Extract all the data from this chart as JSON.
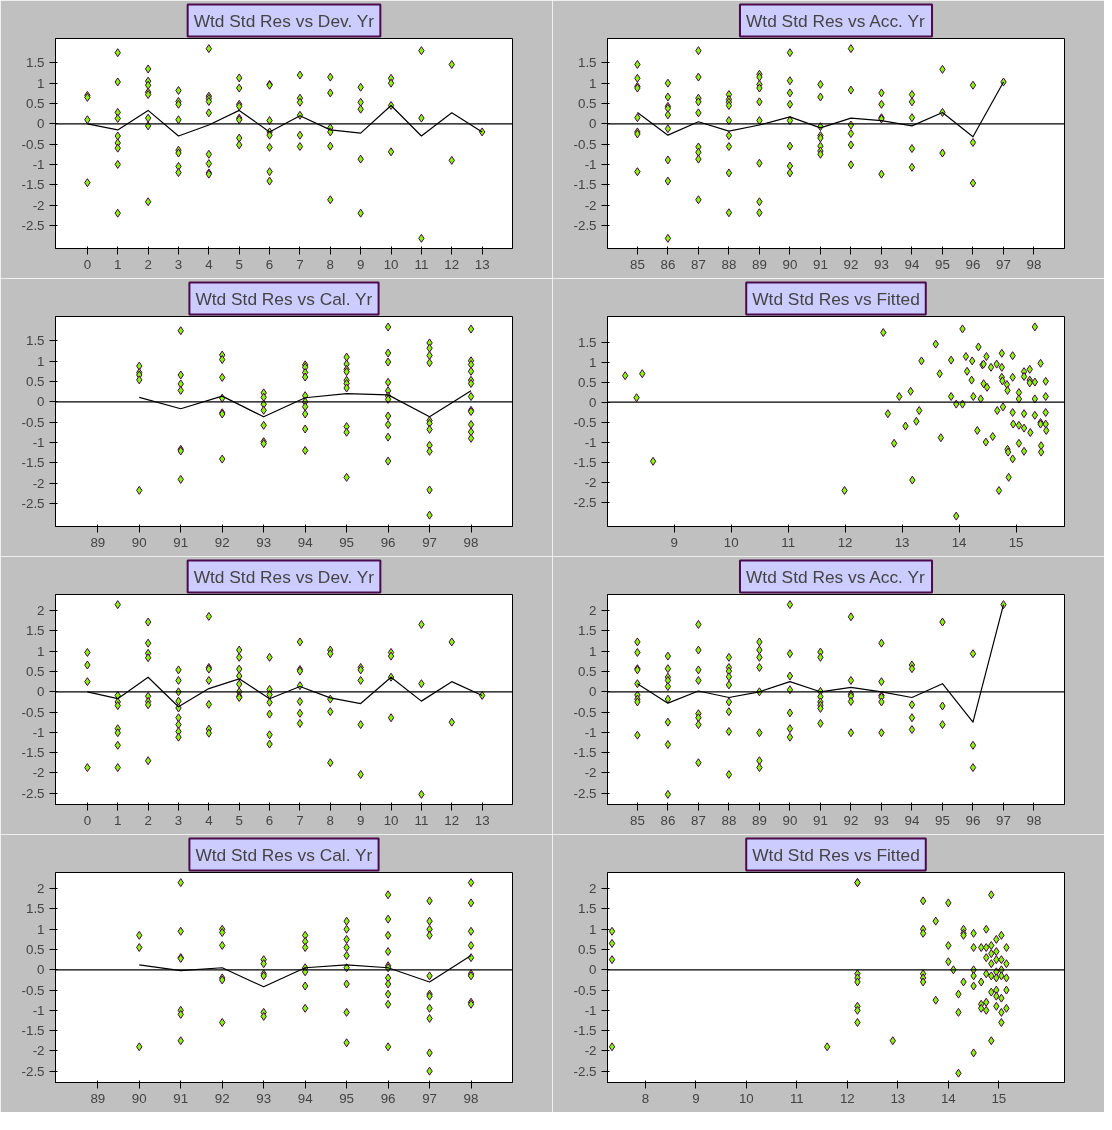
{
  "chart_data": [
    {
      "type": "scatter",
      "title": "Wtd Std Res vs Dev. Yr",
      "xlim": [
        -1.05,
        14
      ],
      "ylim": [
        -3.07,
        2.1
      ],
      "xticks": [
        0,
        1,
        2,
        3,
        4,
        5,
        6,
        7,
        8,
        9,
        10,
        11,
        12,
        13
      ],
      "yticks": [
        -2.5,
        -2,
        -1.5,
        -1,
        -0.5,
        0,
        0.5,
        1,
        1.5
      ],
      "grid": false,
      "marker": "diamond",
      "ref_lines": [
        {
          "axis": "y",
          "value": 0,
          "color": "#000000"
        }
      ],
      "series": [
        {
          "color": "#80ff00",
          "x": [
            0,
            0,
            0,
            0,
            1,
            1,
            1,
            1,
            1,
            1,
            1,
            1,
            1,
            2,
            2,
            2,
            2,
            2,
            2,
            2,
            2,
            3,
            3,
            3,
            3,
            3,
            3,
            3,
            3,
            4,
            4,
            4,
            4,
            4,
            4,
            4,
            4,
            4,
            5,
            5,
            5,
            5,
            5,
            5,
            5,
            5,
            6,
            6,
            6,
            6,
            6,
            6,
            6,
            6,
            7,
            7,
            7,
            7,
            7,
            7,
            8,
            8,
            8,
            8,
            8,
            8,
            9,
            9,
            9,
            9,
            9,
            10,
            10,
            10,
            10,
            11,
            11,
            11,
            12,
            12,
            13
          ],
          "values": [
            0.7,
            0.65,
            0.1,
            -1.45,
            1.75,
            1.03,
            0.28,
            0.13,
            -0.3,
            -0.47,
            -0.6,
            -1.0,
            -2.2,
            1.35,
            1.05,
            0.95,
            0.78,
            0.72,
            0.14,
            -0.05,
            -1.92,
            0.82,
            0.55,
            0.48,
            0.1,
            -0.65,
            -0.72,
            -1.05,
            -1.2,
            1.85,
            0.68,
            0.62,
            0.55,
            0.27,
            -0.75,
            -0.98,
            -1.21,
            -1.24,
            1.13,
            0.88,
            0.48,
            0.43,
            0.14,
            0.1,
            -0.35,
            -0.52,
            0.97,
            0.95,
            0.08,
            -0.2,
            -0.28,
            -0.58,
            -1.18,
            -1.41,
            1.2,
            0.63,
            0.53,
            0.21,
            -0.28,
            -0.56,
            1.15,
            0.76,
            -0.1,
            -0.2,
            -0.55,
            -1.87,
            0.9,
            0.53,
            0.36,
            -0.87,
            -2.2,
            1.12,
            1.0,
            0.45,
            -0.69,
            1.8,
            0.14,
            -2.82,
            1.46,
            -0.9,
            -0.2
          ]
        },
        {
          "type": "line",
          "marker": "none",
          "color": "#000000",
          "line_style": "solid",
          "x": [
            0,
            1,
            2,
            3,
            4,
            5,
            6,
            7,
            8,
            9,
            10,
            11,
            12,
            13
          ],
          "values": [
            0,
            -0.15,
            0.33,
            -0.3,
            -0.03,
            0.33,
            -0.2,
            0.2,
            -0.15,
            -0.23,
            0.45,
            -0.3,
            0.27,
            -0.2
          ]
        }
      ]
    },
    {
      "type": "scatter",
      "title": "Wtd Std Res vs Acc. Yr",
      "xlim": [
        84.02,
        99
      ],
      "ylim": [
        -3.07,
        2.1
      ],
      "xticks": [
        85,
        86,
        87,
        88,
        89,
        90,
        91,
        92,
        93,
        94,
        95,
        96,
        97,
        98
      ],
      "yticks": [
        -2.5,
        -2,
        -1.5,
        -1,
        -0.5,
        0,
        0.5,
        1,
        1.5
      ],
      "grid": false,
      "marker": "diamond",
      "ref_lines": [
        {
          "axis": "y",
          "value": 0,
          "color": "#000000"
        }
      ],
      "series": [
        {
          "color": "#80ff00",
          "x": [
            85,
            85,
            85,
            85,
            85,
            85,
            85,
            85,
            86,
            86,
            86,
            86,
            86,
            86,
            86,
            86,
            86,
            87,
            87,
            87,
            87,
            87,
            87,
            87,
            87,
            87,
            88,
            88,
            88,
            88,
            88,
            88,
            88,
            88,
            88,
            89,
            89,
            89,
            89,
            89,
            89,
            89,
            89,
            89,
            90,
            90,
            90,
            90,
            90,
            90,
            90,
            90,
            91,
            91,
            91,
            91,
            91,
            91,
            91,
            91,
            92,
            92,
            92,
            92,
            92,
            92,
            93,
            93,
            93,
            93,
            93,
            94,
            94,
            94,
            94,
            94,
            95,
            95,
            95,
            96,
            96,
            96,
            97
          ],
          "values": [
            1.46,
            1.12,
            0.92,
            0.88,
            0.15,
            -0.2,
            -0.25,
            -1.18,
            1.0,
            0.66,
            0.43,
            0.38,
            0.22,
            -0.12,
            -0.89,
            -1.41,
            -2.82,
            1.8,
            1.15,
            0.63,
            0.54,
            0.27,
            -0.57,
            -0.7,
            -0.87,
            -1.87,
            0.72,
            0.6,
            0.53,
            0.45,
            0.08,
            -0.29,
            -0.56,
            -1.21,
            -2.19,
            1.22,
            1.15,
            0.97,
            0.88,
            0.54,
            0.08,
            -0.97,
            -1.92,
            -2.19,
            1.75,
            1.06,
            0.76,
            0.48,
            0.08,
            -0.55,
            -1.04,
            -1.21,
            0.97,
            0.66,
            -0.07,
            -0.29,
            -0.35,
            -0.55,
            -0.67,
            -0.75,
            1.85,
            0.83,
            -0.03,
            -0.24,
            -0.52,
            -1.01,
            0.76,
            0.48,
            0.15,
            0.12,
            -1.24,
            0.72,
            0.54,
            0.15,
            -0.61,
            -1.07,
            1.34,
            0.28,
            -0.72,
            0.95,
            -0.46,
            -1.46,
            1.03
          ]
        },
        {
          "type": "line",
          "marker": "none",
          "color": "#000000",
          "line_style": "solid",
          "x": [
            85,
            86,
            87,
            88,
            89,
            90,
            91,
            92,
            93,
            94,
            95,
            96,
            97
          ],
          "values": [
            0.28,
            -0.28,
            0.05,
            -0.18,
            -0.03,
            0.17,
            -0.1,
            0.14,
            0.08,
            -0.05,
            0.28,
            -0.32,
            1.03
          ]
        }
      ]
    },
    {
      "type": "scatter",
      "title": "Wtd Std Res vs Cal. Yr",
      "xlim": [
        87.98,
        99
      ],
      "ylim": [
        -3.07,
        2.1
      ],
      "xticks": [
        89,
        90,
        91,
        92,
        93,
        94,
        95,
        96,
        97,
        98
      ],
      "yticks": [
        -2.5,
        -2,
        -1.5,
        -1,
        -0.5,
        0,
        0.5,
        1,
        1.5
      ],
      "grid": false,
      "marker": "diamond",
      "ref_lines": [
        {
          "axis": "y",
          "value": 0,
          "color": "#000000"
        }
      ],
      "series": [
        {
          "color": "#80ff00",
          "x": [
            90,
            90,
            90,
            90,
            90,
            91,
            91,
            91,
            91,
            91,
            91,
            91,
            92,
            92,
            92,
            92,
            92,
            92,
            92,
            93,
            93,
            93,
            93,
            93,
            93,
            93,
            94,
            94,
            94,
            94,
            94,
            94,
            94,
            94,
            94,
            94,
            95,
            95,
            95,
            95,
            95,
            95,
            95,
            95,
            95,
            95,
            96,
            96,
            96,
            96,
            96,
            96,
            96,
            96,
            96,
            96,
            96,
            97,
            97,
            97,
            97,
            97,
            97,
            97,
            97,
            97,
            97,
            97,
            98,
            98,
            98,
            98,
            98,
            98,
            98,
            98,
            98,
            98,
            98,
            98
          ],
          "values": [
            0.88,
            0.72,
            0.66,
            0.54,
            -2.18,
            1.75,
            0.66,
            0.44,
            0.28,
            -1.17,
            -1.21,
            -1.91,
            1.15,
            1.04,
            0.6,
            0.09,
            -0.27,
            -0.3,
            -1.41,
            0.22,
            0.11,
            -0.06,
            -0.21,
            -0.58,
            -0.98,
            -1.03,
            0.91,
            0.85,
            0.72,
            0.61,
            0.15,
            0,
            -0.12,
            -0.3,
            -0.67,
            -1.2,
            1.1,
            0.93,
            0.8,
            0.74,
            0.53,
            0.45,
            0.34,
            -0.61,
            -0.75,
            -1.86,
            1.84,
            1.2,
            0.98,
            0.48,
            0.27,
            0.14,
            0.06,
            -0.35,
            -0.56,
            -0.87,
            -1.46,
            1.45,
            1.32,
            1.14,
            0.96,
            -0.46,
            -0.53,
            -0.68,
            -1.07,
            -1.22,
            -2.17,
            -2.79,
            1.79,
            1.01,
            0.92,
            0.75,
            0.53,
            0.45,
            0.13,
            -0.21,
            -0.24,
            -0.56,
            -0.74,
            -0.9
          ]
        },
        {
          "type": "line",
          "marker": "none",
          "color": "#000000",
          "line_style": "solid",
          "x": [
            90,
            91,
            92,
            93,
            94,
            95,
            96,
            97,
            98
          ],
          "values": [
            0.11,
            -0.17,
            0.14,
            -0.37,
            0.1,
            0.2,
            0.17,
            -0.37,
            0.27
          ]
        }
      ]
    },
    {
      "type": "scatter",
      "title": "Wtd Std Res vs Fitted",
      "xlim": [
        7.83,
        15.85
      ],
      "ylim": [
        -3.11,
        2.14
      ],
      "xticks": [
        9,
        10,
        11,
        12,
        13,
        14,
        15
      ],
      "yticks": [
        -2.5,
        -2,
        -1.5,
        -1,
        -0.5,
        0,
        0.5,
        1,
        1.5
      ],
      "grid": false,
      "marker": "diamond",
      "ref_lines": [
        {
          "axis": "y",
          "value": 0,
          "color": "#000000"
        }
      ],
      "series": [
        {
          "color": "#80ff00",
          "x": [
            8.14,
            8.34,
            8.44,
            8.63,
            11.99,
            12.67,
            12.75,
            12.86,
            12.95,
            13.06,
            13.15,
            13.18,
            13.25,
            13.3,
            13.34,
            13.59,
            13.66,
            13.68,
            13.86,
            13.86,
            13.95,
            13.95,
            14.06,
            14.06,
            14.12,
            14.14,
            14.22,
            14.23,
            14.25,
            14.32,
            14.34,
            14.38,
            14.41,
            14.43,
            14.43,
            14.47,
            14.49,
            14.48,
            14.56,
            14.59,
            14.66,
            14.67,
            14.7,
            14.75,
            14.75,
            14.75,
            14.76,
            14.77,
            14.84,
            14.85,
            14.85,
            14.86,
            14.87,
            14.94,
            14.94,
            14.94,
            14.95,
            14.94,
            15.05,
            15.05,
            15.05,
            15.05,
            15.14,
            15.14,
            15.14,
            15.14,
            15.14,
            15.24,
            15.24,
            15.24,
            15.25,
            15.33,
            15.33,
            15.33,
            15.33,
            15.43,
            15.43,
            15.43,
            15.44,
            15.44,
            15.52,
            15.52,
            15.52,
            15.52,
            15.53
          ],
          "values": [
            0.66,
            0.11,
            0.71,
            -1.48,
            -2.21,
            1.74,
            -0.29,
            -1.03,
            0.14,
            -0.6,
            0.27,
            -1.95,
            -0.48,
            -0.21,
            1.03,
            1.45,
            0.71,
            -0.89,
            1.05,
            0.14,
            -0.05,
            -2.85,
            1.83,
            -0.05,
            1.14,
            0.77,
            0.55,
            1.03,
            0.14,
            -0.71,
            1.38,
            0.08,
            0.93,
            0.95,
            0.46,
            -1.0,
            0.37,
            1.14,
            0.87,
            -0.86,
            0.95,
            -0.21,
            -2.21,
            1.22,
            0.87,
            0.62,
            0.53,
            -0.12,
            0.44,
            0.29,
            -1.18,
            -1.25,
            -1.88,
            1.16,
            0.62,
            -0.26,
            -0.55,
            -1.42,
            0.24,
            0.08,
            -0.58,
            -1.03,
            0.76,
            0.64,
            -0.29,
            -0.65,
            -1.23,
            0.82,
            0.55,
            0.48,
            -0.76,
            0.5,
            1.88,
            0.08,
            -0.33,
            0.97,
            -0.51,
            -0.55,
            -1.09,
            -1.25,
            0.52,
            0.14,
            -0.26,
            -0.55,
            -0.71
          ]
        }
      ]
    },
    {
      "type": "scatter",
      "title": "Wtd Std Res vs Dev. Yr",
      "xlim": [
        -1.05,
        14
      ],
      "ylim": [
        -2.78,
        2.4
      ],
      "xticks": [
        0,
        1,
        2,
        3,
        4,
        5,
        6,
        7,
        8,
        9,
        10,
        11,
        12,
        13
      ],
      "yticks": [
        -2.5,
        -2,
        -1.5,
        -1,
        -0.5,
        0,
        0.5,
        1,
        1.5,
        2
      ],
      "grid": false,
      "marker": "diamond",
      "ref_lines": [
        {
          "axis": "y",
          "value": 0,
          "color": "#000000"
        }
      ],
      "series": [
        {
          "color": "#80ff00",
          "x": [
            0,
            0,
            0,
            0,
            1,
            1,
            1,
            1,
            1,
            1,
            1,
            1,
            2,
            2,
            2,
            2,
            2,
            2,
            2,
            2,
            3,
            3,
            3,
            3,
            3,
            3,
            3,
            3,
            3,
            4,
            4,
            4,
            4,
            4,
            4,
            4,
            5,
            5,
            5,
            5,
            5,
            5,
            5,
            5,
            6,
            6,
            6,
            6,
            6,
            6,
            6,
            7,
            7,
            7,
            7,
            7,
            7,
            7,
            8,
            8,
            8,
            8,
            8,
            9,
            9,
            9,
            9,
            9,
            10,
            10,
            10,
            10,
            11,
            11,
            11,
            12,
            12,
            13
          ],
          "values": [
            0.97,
            0.66,
            0.25,
            -1.87,
            2.15,
            -0.09,
            -0.25,
            -0.34,
            -0.91,
            -1.01,
            -1.32,
            -1.87,
            1.72,
            1.2,
            0.95,
            0.84,
            -0.11,
            -0.24,
            -0.32,
            -1.7,
            0.54,
            0.28,
            0,
            -0.23,
            -0.4,
            -0.64,
            -0.81,
            -0.98,
            -1.12,
            1.86,
            0.6,
            0.56,
            0.28,
            -0.31,
            -0.92,
            -1.02,
            1.03,
            0.85,
            0.56,
            0.39,
            0.19,
            0,
            -0.11,
            -0.14,
            0.85,
            0.06,
            -0.07,
            -0.26,
            -0.55,
            -1.06,
            -1.29,
            1.23,
            0.55,
            0.51,
            0.15,
            -0.24,
            -0.53,
            -0.78,
            1.03,
            0.94,
            -0.18,
            -0.49,
            -1.75,
            0.6,
            0.54,
            0.28,
            -0.81,
            -2.04,
            0.97,
            0.88,
            0.36,
            -0.64,
            1.66,
            0.2,
            -2.53,
            1.23,
            -0.75,
            -0.09
          ]
        },
        {
          "type": "line",
          "marker": "none",
          "color": "#000000",
          "line_style": "solid",
          "x": [
            0,
            1,
            2,
            3,
            4,
            5,
            6,
            7,
            8,
            9,
            10,
            11,
            12,
            13
          ],
          "values": [
            0,
            -0.17,
            0.36,
            -0.37,
            0.08,
            0.32,
            -0.17,
            0.13,
            -0.15,
            -0.29,
            0.36,
            -0.23,
            0.25,
            -0.09
          ]
        }
      ]
    },
    {
      "type": "scatter",
      "title": "Wtd Std Res vs Acc. Yr",
      "xlim": [
        84.02,
        99
      ],
      "ylim": [
        -2.78,
        2.4
      ],
      "xticks": [
        85,
        86,
        87,
        88,
        89,
        90,
        91,
        92,
        93,
        94,
        95,
        96,
        97,
        98
      ],
      "yticks": [
        -2.5,
        -2,
        -1.5,
        -1,
        -0.5,
        0,
        0.5,
        1,
        1.5,
        2
      ],
      "grid": false,
      "marker": "diamond",
      "ref_lines": [
        {
          "axis": "y",
          "value": 0,
          "color": "#000000"
        }
      ],
      "series": [
        {
          "color": "#80ff00",
          "x": [
            85,
            85,
            85,
            85,
            85,
            85,
            85,
            85,
            85,
            86,
            86,
            86,
            86,
            86,
            86,
            86,
            86,
            86,
            87,
            87,
            87,
            87,
            87,
            87,
            87,
            87,
            88,
            88,
            88,
            88,
            88,
            88,
            88,
            88,
            88,
            89,
            89,
            89,
            89,
            89,
            89,
            89,
            89,
            90,
            90,
            90,
            90,
            90,
            90,
            90,
            91,
            91,
            91,
            91,
            91,
            91,
            91,
            91,
            92,
            92,
            92,
            92,
            92,
            92,
            93,
            93,
            93,
            93,
            93,
            93,
            94,
            94,
            94,
            94,
            94,
            95,
            95,
            95,
            96,
            96,
            96,
            97
          ],
          "values": [
            1.23,
            0.97,
            0.57,
            0.54,
            0.2,
            -0.08,
            -0.18,
            -0.25,
            -1.07,
            0.88,
            0.57,
            0.36,
            0.28,
            0.13,
            -0.18,
            -0.75,
            -1.3,
            -2.53,
            1.66,
            1.03,
            0.54,
            0.28,
            -0.54,
            -0.64,
            -0.81,
            -1.75,
            0.85,
            0.6,
            0.51,
            0.37,
            0.17,
            -0.25,
            -0.49,
            -0.98,
            -2.04,
            1.23,
            1.03,
            0.85,
            0.6,
            0,
            -1.01,
            -1.7,
            -1.87,
            2.15,
            0.94,
            0.39,
            0.05,
            -0.52,
            -0.91,
            -1.12,
            0.98,
            0.85,
            0.01,
            -0.12,
            -0.25,
            -0.33,
            -0.41,
            -0.78,
            1.85,
            0.28,
            -0.06,
            -0.11,
            -0.24,
            -1.01,
            1.2,
            0.25,
            -0.09,
            -0.13,
            -0.25,
            -1.01,
            0.66,
            0.57,
            -0.32,
            -0.64,
            -0.93,
            1.72,
            -0.35,
            -0.81,
            0.94,
            -1.32,
            -1.87,
            2.15
          ]
        },
        {
          "type": "line",
          "marker": "none",
          "color": "#000000",
          "line_style": "solid",
          "x": [
            85,
            86,
            87,
            88,
            89,
            90,
            91,
            92,
            93,
            94,
            95,
            96,
            97
          ],
          "values": [
            0.2,
            -0.28,
            0.02,
            -0.14,
            0,
            0.25,
            0,
            0.11,
            0,
            -0.14,
            0.2,
            -0.75,
            2.15
          ]
        }
      ]
    },
    {
      "type": "scatter",
      "title": "Wtd Std Res vs Cal. Yr",
      "xlim": [
        87.98,
        99
      ],
      "ylim": [
        -2.78,
        2.4
      ],
      "xticks": [
        89,
        90,
        91,
        92,
        93,
        94,
        95,
        96,
        97,
        98
      ],
      "yticks": [
        -2.5,
        -2,
        -1.5,
        -1,
        -0.5,
        0,
        0.5,
        1,
        1.5,
        2
      ],
      "grid": false,
      "marker": "diamond",
      "ref_lines": [
        {
          "axis": "y",
          "value": 0,
          "color": "#000000"
        }
      ],
      "series": [
        {
          "color": "#80ff00",
          "x": [
            90,
            90,
            90,
            91,
            91,
            91,
            91,
            91,
            91,
            91,
            92,
            92,
            92,
            92,
            92,
            92,
            93,
            93,
            93,
            93,
            93,
            93,
            94,
            94,
            94,
            94,
            94,
            94,
            94,
            95,
            95,
            95,
            95,
            95,
            95,
            95,
            95,
            95,
            96,
            96,
            96,
            96,
            96,
            96,
            96,
            96,
            96,
            96,
            96,
            97,
            97,
            97,
            97,
            97,
            97,
            97,
            97,
            97,
            97,
            97,
            98,
            98,
            98,
            98,
            98,
            98,
            98,
            98,
            98
          ],
          "values": [
            0.85,
            0.55,
            -1.9,
            2.15,
            0.95,
            0.3,
            0.28,
            -1.0,
            -1.1,
            -1.75,
            1.0,
            0.92,
            0.6,
            -0.2,
            -0.25,
            -1.3,
            0.25,
            0.15,
            -0.1,
            -0.15,
            -1.05,
            -1.15,
            0.85,
            0.7,
            0.55,
            0.05,
            -0.05,
            -0.4,
            -0.95,
            1.2,
            1.0,
            0.75,
            0.55,
            0.35,
            0.05,
            -0.35,
            -1.05,
            -1.8,
            1.85,
            1.25,
            0.85,
            0.45,
            0.1,
            0.05,
            -0.2,
            -0.35,
            -0.6,
            -0.85,
            -1.9,
            1.7,
            1.2,
            1.0,
            0.85,
            -0.15,
            -0.6,
            -0.65,
            -0.95,
            -1.2,
            -2.05,
            -2.5,
            2.15,
            1.65,
            0.95,
            0.6,
            0.3,
            -0.1,
            -0.15,
            -0.8,
            -0.85
          ]
        },
        {
          "type": "line",
          "marker": "none",
          "color": "#000000",
          "line_style": "solid",
          "x": [
            90,
            91,
            92,
            93,
            94,
            95,
            96,
            97,
            98
          ],
          "values": [
            0.12,
            -0.02,
            0.05,
            -0.42,
            0.05,
            0.12,
            0.05,
            -0.3,
            0.35
          ]
        }
      ]
    },
    {
      "type": "scatter",
      "title": "Wtd Std Res vs Fitted",
      "xlim": [
        7.25,
        16.3
      ],
      "ylim": [
        -2.78,
        2.4
      ],
      "xticks": [
        8,
        9,
        10,
        11,
        12,
        13,
        14,
        15
      ],
      "yticks": [
        -2.5,
        -2,
        -1.5,
        -1,
        -0.5,
        0,
        0.5,
        1,
        1.5,
        2
      ],
      "grid": false,
      "marker": "diamond",
      "ref_lines": [
        {
          "axis": "y",
          "value": 0,
          "color": "#000000"
        }
      ],
      "series": [
        {
          "color": "#80ff00",
          "x": [
            7.34,
            7.34,
            7.34,
            7.34,
            12.2,
            12.2,
            12.2,
            12.2,
            12.2,
            12.2,
            12.2,
            12.2,
            11.6,
            12.9,
            13.5,
            13.5,
            13.5,
            13.5,
            13.5,
            13.5,
            13.75,
            13.75,
            14.0,
            14.0,
            14.0,
            14.1,
            14.2,
            14.2,
            14.2,
            14.3,
            14.3,
            14.3,
            14.3,
            14.5,
            14.5,
            14.5,
            14.5,
            14.5,
            14.5,
            14.65,
            14.65,
            14.65,
            14.65,
            14.75,
            14.75,
            14.75,
            14.75,
            14.75,
            14.75,
            14.85,
            14.85,
            14.85,
            14.85,
            14.85,
            14.85,
            14.85,
            14.95,
            14.95,
            14.95,
            14.95,
            14.95,
            14.95,
            14.95,
            14.95,
            15.05,
            15.05,
            15.05,
            15.05,
            15.05,
            15.05,
            15.05,
            15.15,
            15.15,
            15.15,
            15.15,
            15.15
          ],
          "values": [
            0.95,
            0.65,
            0.25,
            -1.9,
            2.15,
            2.15,
            -0.1,
            -0.2,
            -0.3,
            -0.9,
            -1.0,
            -1.3,
            -1.9,
            -1.75,
            1.7,
            1.0,
            0.9,
            -0.1,
            -0.2,
            -0.3,
            1.2,
            -0.75,
            1.65,
            0.6,
            0.2,
            0.0,
            -2.55,
            -1.05,
            -0.6,
            1.0,
            0.9,
            0.85,
            -0.3,
            0.9,
            0.55,
            0.0,
            -0.15,
            -0.4,
            -2.05,
            0.55,
            -0.3,
            -0.85,
            -0.95,
            1.0,
            0.55,
            0.3,
            -0.1,
            -0.8,
            -1.0,
            1.85,
            0.6,
            0.4,
            0.15,
            -0.15,
            -0.55,
            -1.75,
            0.75,
            0.45,
            0.25,
            -0.05,
            -0.2,
            -0.5,
            -0.65,
            -0.9,
            0.85,
            0.25,
            0.0,
            -0.15,
            -0.7,
            -1.05,
            -1.3,
            0.55,
            0.15,
            -0.2,
            -0.5,
            -0.95
          ]
        }
      ]
    }
  ]
}
